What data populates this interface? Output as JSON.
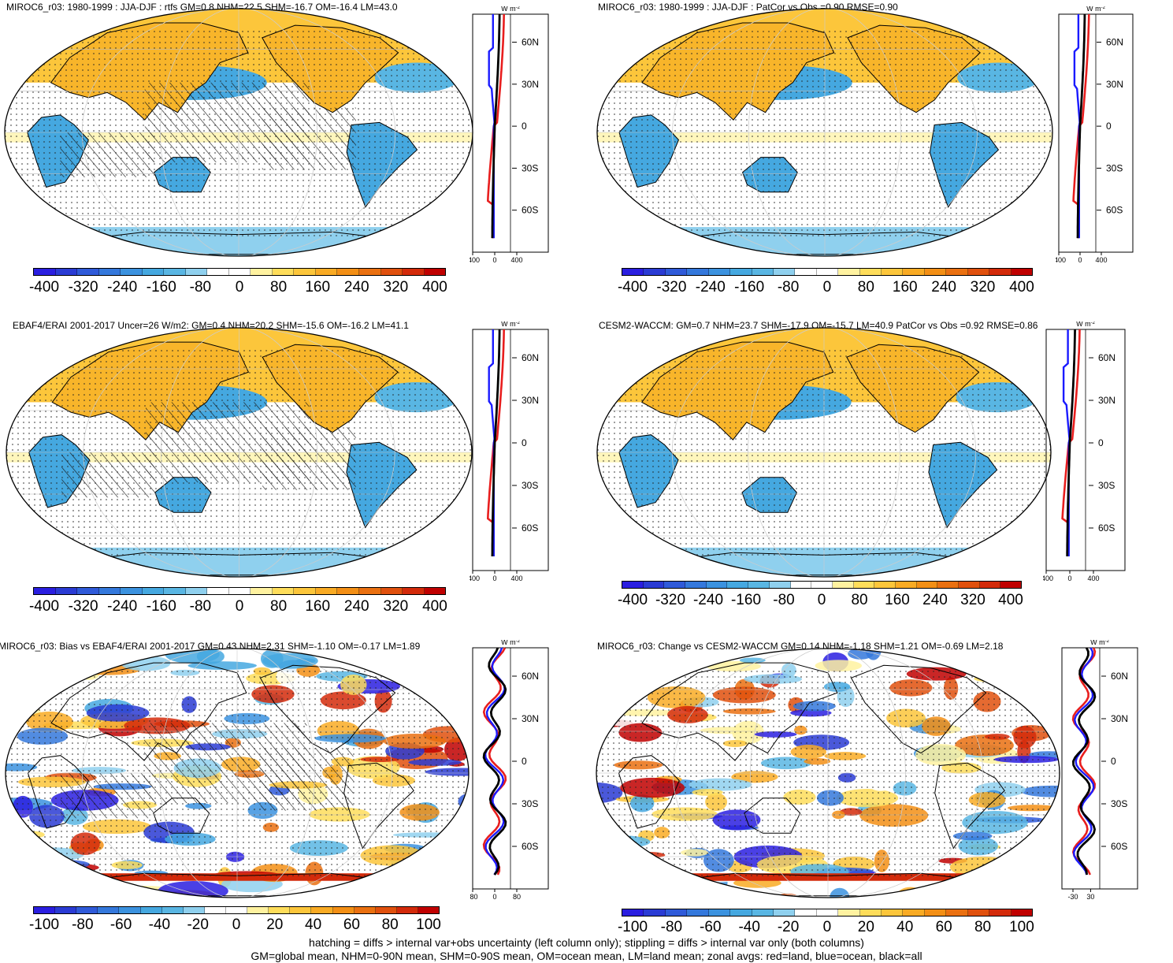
{
  "palette": [
    "#2a1ee0",
    "#2a3bd4",
    "#2f5ad9",
    "#3478dc",
    "#3b92df",
    "#45a8e0",
    "#59b6e3",
    "#8fd0ee",
    "#ffffff",
    "#ffffff",
    "#fff2a0",
    "#fedd5a",
    "#fcc63b",
    "#f9ab24",
    "#f38f15",
    "#ea7010",
    "#e0500d",
    "#d32a0a",
    "#c00000"
  ],
  "zonal_legend": {
    "land": "#e81e1e",
    "ocean": "#1a1aff",
    "all": "#000000"
  },
  "panels": [
    {
      "title": "MIROC6_r03: 1980-1999 : JJA-DJF : rtfs GM=0.8 NHM=22.5 SHM=-16.7 OM=-16.4 LM=43.0",
      "units": "W m",
      "units_sup": "-2",
      "cbar_ticks": [
        "-400",
        "-320",
        "-240",
        "-160",
        "-80",
        "0",
        "80",
        "160",
        "240",
        "320",
        "400"
      ],
      "zonal_xticks": [
        "-400",
        "0",
        "400"
      ],
      "lat_ticks": [
        "60N",
        "30N",
        "0",
        "30S",
        "60S"
      ],
      "hatched": true,
      "diff": false
    },
    {
      "title": "MIROC6_r03: 1980-1999 : JJA-DJF : PatCor vs Obs =0.90 RMSE=0.90",
      "units": "W m",
      "units_sup": "-2",
      "cbar_ticks": [
        "-400",
        "-320",
        "-240",
        "-160",
        "-80",
        "0",
        "80",
        "160",
        "240",
        "320",
        "400"
      ],
      "zonal_xticks": [
        "-400",
        "0",
        "400"
      ],
      "lat_ticks": [
        "60N",
        "30N",
        "0",
        "30S",
        "60S"
      ],
      "hatched": false,
      "diff": false
    },
    {
      "title": "EBAF4/ERAI 2001-2017 Uncer=26 W/m2: GM=0.4 NHM=20.2 SHM=-15.6 OM=-16.2 LM=41.1",
      "units": "W m",
      "units_sup": "-2",
      "cbar_ticks": [
        "-400",
        "-320",
        "-240",
        "-160",
        "-80",
        "0",
        "80",
        "160",
        "240",
        "320",
        "400"
      ],
      "zonal_xticks": [
        "-400",
        "0",
        "400"
      ],
      "lat_ticks": [
        "60N",
        "30N",
        "0",
        "30S",
        "60S"
      ],
      "hatched": true,
      "diff": false
    },
    {
      "title": "CESM2-WACCM: GM=0.7 NHM=23.7 SHM=-17.9 OM=-15.7 LM=40.9 PatCor vs Obs =0.92 RMSE=0.86",
      "units": "W m",
      "units_sup": "-2",
      "cbar_ticks": [
        "-400",
        "-320",
        "-240",
        "-160",
        "-80",
        "0",
        "80",
        "160",
        "240",
        "320",
        "400"
      ],
      "zonal_xticks": [
        "-400",
        "0",
        "400"
      ],
      "lat_ticks": [
        "60N",
        "30N",
        "0",
        "30S",
        "60S"
      ],
      "hatched": false,
      "diff": false
    },
    {
      "title": "MIROC6_r03: Bias vs EBAF4/ERAI 2001-2017 GM=0.43 NHM=2.31 SHM=-1.10 OM=-0.17 LM=1.89",
      "units": "W m",
      "units_sup": "-2",
      "cbar_ticks": [
        "-100",
        "-80",
        "-60",
        "-40",
        "-20",
        "0",
        "20",
        "40",
        "60",
        "80",
        "100"
      ],
      "zonal_xticks": [
        "-80",
        "0",
        "80"
      ],
      "lat_ticks": [
        "60N",
        "30N",
        "0",
        "30S",
        "60S"
      ],
      "hatched": true,
      "diff": true
    },
    {
      "title": "MIROC6_r03: Change vs CESM2-WACCM GM=0.14 NHM=-1.18 SHM=1.21 OM=-0.69 LM=2.18",
      "units": "W m",
      "units_sup": "-2",
      "cbar_ticks": [
        "-100",
        "-80",
        "-60",
        "-40",
        "-20",
        "0",
        "20",
        "40",
        "60",
        "80",
        "100"
      ],
      "zonal_xticks": [
        "-30",
        "30"
      ],
      "lat_ticks": [
        "60N",
        "30N",
        "0",
        "30S",
        "60S"
      ],
      "hatched": false,
      "diff": true
    }
  ],
  "footer": {
    "line1": "hatching = diffs > internal var+obs uncertainty (left column only); stippling = diffs > internal var only (both columns)",
    "line2": "GM=global mean, NHM=0-90N mean, SHM=0-90S mean, OM=ocean mean, LM=land mean; zonal avgs: red=land, blue=ocean, black=all"
  }
}
